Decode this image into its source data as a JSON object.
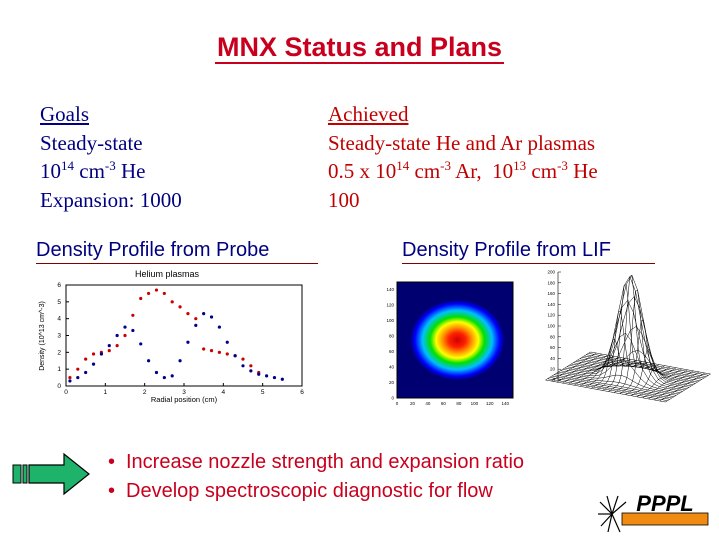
{
  "title": "MNX Status and Plans",
  "goals": {
    "heading": "Goals",
    "line1": "Steady-state",
    "density_base": "10",
    "density_exp": "14",
    "density_unit": "cm",
    "density_unit_exp": "-3",
    "density_species": "He",
    "line3": "Expansion: 1000"
  },
  "achieved": {
    "heading": "Achieved",
    "line1": "Steady-state He and Ar plasmas",
    "ar_prefix": "0.5 x 10",
    "ar_exp": "14",
    "ar_unit": "cm",
    "ar_unit_exp": "-3",
    "ar_species": "Ar,",
    "he_base": "10",
    "he_exp": "13",
    "he_unit": "cm",
    "he_unit_exp": "-3",
    "he_species": "He",
    "line3": "100"
  },
  "probe_section": {
    "heading": "Density Profile from Probe"
  },
  "lif_section": {
    "heading": "Density Profile from LIF"
  },
  "bullets": [
    "Increase nozzle strength and expansion ratio",
    "Develop spectroscopic diagnostic for flow"
  ],
  "logo": {
    "text": "PPPL"
  },
  "colors": {
    "title": "#c8001e",
    "navy": "#000080",
    "bullets": "#c8001e",
    "arrow": "#1db36b"
  },
  "chart_data": [
    {
      "type": "scatter",
      "title": "Helium plasmas",
      "xlabel": "Radial position (cm)",
      "ylabel": "Density (10^13 cm^-3)",
      "xlim": [
        0,
        6
      ],
      "ylim": [
        0,
        6
      ],
      "xticks": [
        "0",
        "1",
        "2",
        "3",
        "4",
        "5",
        "6"
      ],
      "yticks": [
        "0",
        "1",
        "2",
        "3",
        "4",
        "5",
        "6"
      ],
      "series": [
        {
          "color": "#cc0000",
          "x": [
            0.1,
            0.3,
            0.5,
            0.7,
            0.9,
            1.1,
            1.3,
            1.5,
            1.7,
            1.9,
            2.1,
            2.3,
            2.5,
            2.7,
            2.9,
            3.1,
            3.3,
            3.5,
            3.7,
            3.9,
            4.1,
            4.3,
            4.5,
            4.7,
            4.9
          ],
          "y": [
            0.5,
            1.0,
            1.6,
            1.9,
            2.0,
            2.1,
            2.4,
            3.0,
            4.2,
            5.2,
            5.5,
            5.7,
            5.5,
            5.0,
            4.7,
            4.3,
            4.0,
            2.2,
            2.1,
            2.0,
            1.9,
            1.8,
            1.6,
            1.2,
            0.8
          ]
        },
        {
          "color": "#00008b",
          "x": [
            0.1,
            0.3,
            0.5,
            0.7,
            0.9,
            1.1,
            1.3,
            1.5,
            1.7,
            1.9,
            2.1,
            2.3,
            2.5,
            2.7,
            2.9,
            3.1,
            3.3,
            3.5,
            3.7,
            3.9,
            4.1,
            4.3,
            4.5,
            4.7,
            4.9,
            5.1,
            5.3,
            5.5
          ],
          "y": [
            0.3,
            0.5,
            0.8,
            1.3,
            1.9,
            2.4,
            3.0,
            3.5,
            3.3,
            2.5,
            1.5,
            0.8,
            0.5,
            0.6,
            1.5,
            2.6,
            3.6,
            4.3,
            4.1,
            3.5,
            2.6,
            1.8,
            1.2,
            0.9,
            0.7,
            0.6,
            0.5,
            0.4
          ]
        }
      ]
    },
    {
      "type": "heatmap",
      "xticks": [
        "0",
        "20",
        "40",
        "60",
        "80",
        "100",
        "120",
        "140"
      ],
      "yticks": [
        "0",
        "20",
        "40",
        "60",
        "80",
        "100",
        "120",
        "140"
      ],
      "xlim": [
        0,
        150
      ],
      "ylim": [
        0,
        150
      ],
      "center": [
        65,
        75
      ]
    },
    {
      "type": "surface",
      "zticks": [
        "0",
        "20",
        "40",
        "60",
        "80",
        "100",
        "120",
        "140",
        "160",
        "180",
        "200"
      ],
      "zlim": [
        0,
        200
      ]
    }
  ]
}
